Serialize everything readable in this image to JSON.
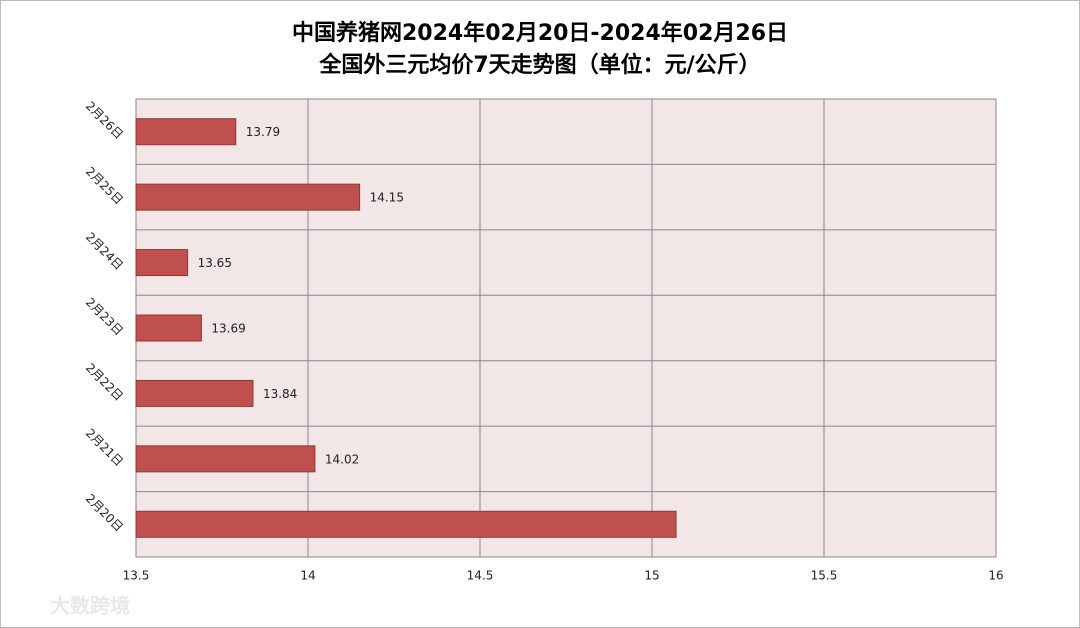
{
  "chart_data": {
    "type": "bar",
    "orientation": "horizontal",
    "title": "中国养猪网2024年02月20日-2024年02月26日",
    "subtitle": "全国外三元均价7天走势图（单位：元/公斤）",
    "categories": [
      "2月26日",
      "2月25日",
      "2月24日",
      "2月23日",
      "2月22日",
      "2月21日",
      "2月20日"
    ],
    "values": [
      13.79,
      14.15,
      13.65,
      13.69,
      13.84,
      14.02,
      15.07
    ],
    "value_labels": [
      "13.79",
      "14.15",
      "13.65",
      "13.69",
      "13.84",
      "14.02",
      null
    ],
    "color": "#c0504d",
    "xlim": [
      13.5,
      16
    ],
    "xticks": [
      13.5,
      14,
      14.5,
      15,
      15.5,
      16
    ],
    "grid": true,
    "watermark": "大数跨境"
  }
}
